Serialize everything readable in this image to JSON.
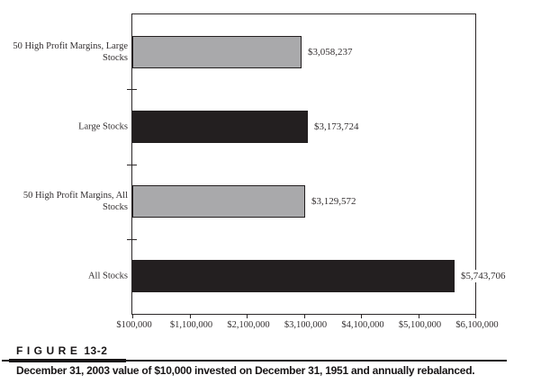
{
  "figure": {
    "label": "FIGURE",
    "number": "13-2",
    "caption": "December 31, 2003 value of $10,000 invested on December 31, 1951 and annually rebalanced."
  },
  "colors": {
    "gray_bar": "#a9a9ab",
    "black_bar": "#231f20",
    "axis": "#2b2728",
    "text": "#332f30"
  },
  "chart_data": {
    "type": "bar",
    "orientation": "horizontal",
    "title": "",
    "xlabel": "",
    "ylabel": "",
    "grid": false,
    "legend": null,
    "categories": [
      "50 High Profit Margins, Large Stocks",
      "Large Stocks",
      "50 High Profit Margins, All Stocks",
      "All Stocks"
    ],
    "values": [
      3058237,
      3173724,
      3129572,
      5743706
    ],
    "value_labels": [
      "$3,058,237",
      "$3,173,724",
      "$3,129,572",
      "$5,743,706"
    ],
    "bar_colors": [
      "#a9a9ab",
      "#231f20",
      "#a9a9ab",
      "#231f20"
    ],
    "xlim": [
      100000,
      6100000
    ],
    "x_tick_values": [
      100000,
      1100000,
      2100000,
      3100000,
      4100000,
      5100000,
      6100000
    ],
    "x_tick_labels": [
      "$100,000",
      "$1,100,000",
      "$2,100,000",
      "$3,100,000",
      "$4,100,000",
      "$5,100,000",
      "$6,100,000"
    ]
  }
}
